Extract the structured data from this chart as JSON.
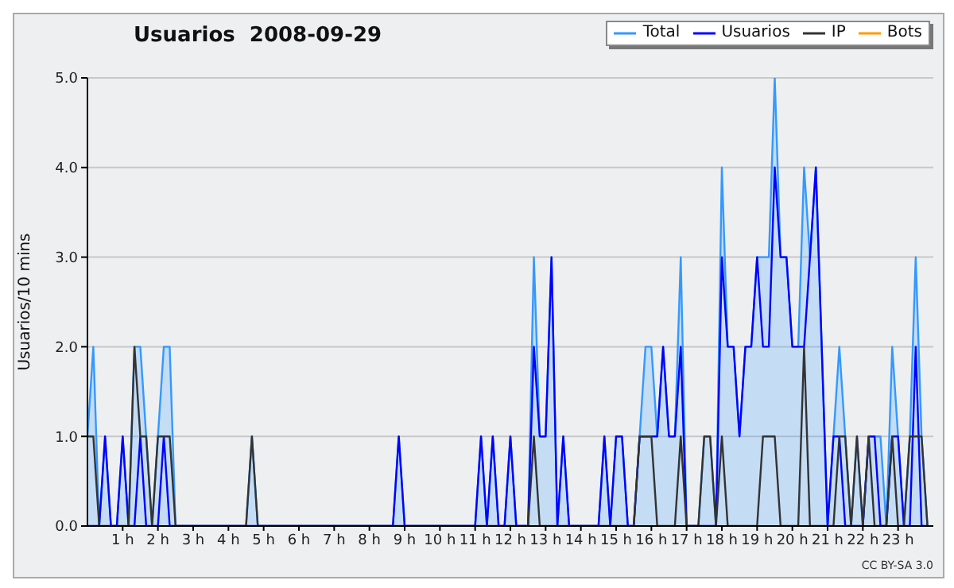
{
  "chart_data": {
    "type": "line",
    "title": "Usuarios  2008-09-29",
    "ylabel": "Usuarios/10 mins",
    "annotations": [
      "CC BY-SA 3.0"
    ],
    "x": [
      0,
      0.1667,
      0.3333,
      0.5,
      0.6667,
      0.8333,
      1,
      1.1667,
      1.3333,
      1.5,
      1.6667,
      1.8333,
      2,
      2.1667,
      2.3333,
      2.5,
      2.6667,
      2.8333,
      3,
      3.1667,
      3.3333,
      3.5,
      3.6667,
      3.8333,
      4,
      4.1667,
      4.3333,
      4.5,
      4.6667,
      4.8333,
      5,
      5.1667,
      5.3333,
      5.5,
      5.6667,
      5.8333,
      6,
      6.1667,
      6.3333,
      6.5,
      6.6667,
      6.8333,
      7,
      7.1667,
      7.3333,
      7.5,
      7.6667,
      7.8333,
      8,
      8.1667,
      8.3333,
      8.5,
      8.6667,
      8.8333,
      9,
      9.1667,
      9.3333,
      9.5,
      9.6667,
      9.8333,
      10,
      10.1667,
      10.3333,
      10.5,
      10.6667,
      10.8333,
      11,
      11.1667,
      11.3333,
      11.5,
      11.6667,
      11.8333,
      12,
      12.1667,
      12.3333,
      12.5,
      12.6667,
      12.8333,
      13,
      13.1667,
      13.3333,
      13.5,
      13.6667,
      13.8333,
      14,
      14.1667,
      14.3333,
      14.5,
      14.6667,
      14.8333,
      15,
      15.1667,
      15.3333,
      15.5,
      15.6667,
      15.8333,
      16,
      16.1667,
      16.3333,
      16.5,
      16.6667,
      16.8333,
      17,
      17.1667,
      17.3333,
      17.5,
      17.6667,
      17.8333,
      18,
      18.1667,
      18.3333,
      18.5,
      18.6667,
      18.8333,
      19,
      19.1667,
      19.3333,
      19.5,
      19.6667,
      19.8333,
      20,
      20.1667,
      20.3333,
      20.5,
      20.6667,
      20.8333,
      21,
      21.1667,
      21.3333,
      21.5,
      21.6667,
      21.8333,
      22,
      22.1667,
      22.3333,
      22.5,
      22.6667,
      22.8333,
      23,
      23.1667,
      23.3333,
      23.5,
      23.6667,
      23.8333
    ],
    "series": [
      {
        "name": "Total",
        "type": "area",
        "color": "#3399ff",
        "values": [
          1,
          2,
          0,
          1,
          0,
          0,
          1,
          0,
          2,
          2,
          1,
          0,
          1,
          2,
          2,
          0,
          0,
          0,
          0,
          0,
          0,
          0,
          0,
          0,
          0,
          0,
          0,
          0,
          1,
          0,
          0,
          0,
          0,
          0,
          0,
          0,
          0,
          0,
          0,
          0,
          0,
          0,
          0,
          0,
          0,
          0,
          0,
          0,
          0,
          0,
          0,
          0,
          0,
          1,
          0,
          0,
          0,
          0,
          0,
          0,
          0,
          0,
          0,
          0,
          0,
          0,
          0,
          1,
          0,
          1,
          0,
          0,
          1,
          0,
          0,
          0,
          3,
          1,
          1,
          3,
          0,
          1,
          0,
          0,
          0,
          0,
          0,
          0,
          1,
          0,
          1,
          1,
          0,
          0,
          1,
          2,
          2,
          1,
          2,
          1,
          1,
          3,
          0,
          0,
          0,
          1,
          1,
          0,
          4,
          2,
          2,
          1,
          2,
          2,
          3,
          3,
          3,
          5,
          3,
          3,
          2,
          2,
          4,
          3,
          4,
          2,
          0,
          1,
          2,
          1,
          0,
          1,
          0,
          1,
          1,
          1,
          0,
          2,
          1,
          0,
          1,
          3,
          1,
          0
        ]
      },
      {
        "name": "Usuarios",
        "color": "#0000ff",
        "values": [
          0,
          0,
          0,
          1,
          0,
          0,
          1,
          0,
          0,
          1,
          0,
          0,
          0,
          1,
          0,
          0,
          0,
          0,
          0,
          0,
          0,
          0,
          0,
          0,
          0,
          0,
          0,
          0,
          0,
          0,
          0,
          0,
          0,
          0,
          0,
          0,
          0,
          0,
          0,
          0,
          0,
          0,
          0,
          0,
          0,
          0,
          0,
          0,
          0,
          0,
          0,
          0,
          0,
          1,
          0,
          0,
          0,
          0,
          0,
          0,
          0,
          0,
          0,
          0,
          0,
          0,
          0,
          1,
          0,
          1,
          0,
          0,
          1,
          0,
          0,
          0,
          2,
          1,
          1,
          3,
          0,
          1,
          0,
          0,
          0,
          0,
          0,
          0,
          1,
          0,
          1,
          1,
          0,
          0,
          1,
          1,
          1,
          1,
          2,
          1,
          1,
          2,
          0,
          0,
          0,
          0,
          0,
          0,
          3,
          2,
          2,
          1,
          2,
          2,
          3,
          2,
          2,
          4,
          3,
          3,
          2,
          2,
          2,
          3,
          4,
          2,
          0,
          1,
          1,
          0,
          0,
          0,
          0,
          1,
          1,
          0,
          0,
          1,
          1,
          0,
          0,
          2,
          0,
          0
        ]
      },
      {
        "name": "IP",
        "color": "#333333",
        "values": [
          1,
          1,
          0,
          0,
          0,
          0,
          0,
          0,
          2,
          1,
          1,
          0,
          1,
          1,
          1,
          0,
          0,
          0,
          0,
          0,
          0,
          0,
          0,
          0,
          0,
          0,
          0,
          0,
          1,
          0,
          0,
          0,
          0,
          0,
          0,
          0,
          0,
          0,
          0,
          0,
          0,
          0,
          0,
          0,
          0,
          0,
          0,
          0,
          0,
          0,
          0,
          0,
          0,
          0,
          0,
          0,
          0,
          0,
          0,
          0,
          0,
          0,
          0,
          0,
          0,
          0,
          0,
          0,
          0,
          0,
          0,
          0,
          0,
          0,
          0,
          0,
          1,
          0,
          0,
          0,
          0,
          0,
          0,
          0,
          0,
          0,
          0,
          0,
          0,
          0,
          0,
          0,
          0,
          0,
          1,
          1,
          1,
          0,
          0,
          0,
          0,
          1,
          0,
          0,
          0,
          1,
          1,
          0,
          1,
          0,
          0,
          0,
          0,
          0,
          0,
          1,
          1,
          1,
          0,
          0,
          0,
          0,
          2,
          0,
          0,
          0,
          0,
          0,
          1,
          1,
          0,
          1,
          0,
          1,
          0,
          0,
          0,
          1,
          0,
          0,
          1,
          1,
          1,
          0
        ]
      },
      {
        "name": "Bots",
        "color": "#ff9900",
        "values": [
          null,
          null,
          null,
          null,
          null,
          null,
          null,
          null,
          null,
          null,
          null,
          null,
          null,
          null,
          null,
          null,
          null,
          null,
          null,
          null,
          null,
          null,
          null,
          null,
          null,
          null,
          null,
          null,
          null,
          null,
          null,
          null,
          null,
          null,
          null,
          null,
          null,
          null,
          null,
          null,
          null,
          null,
          null,
          null,
          null,
          null,
          null,
          null,
          null,
          null,
          null,
          null,
          null,
          null,
          null,
          null,
          null,
          null,
          null,
          null,
          null,
          null,
          null,
          null,
          null,
          null,
          null,
          null,
          null,
          null,
          null,
          null,
          null,
          null,
          null,
          null,
          null,
          null,
          null,
          null,
          null,
          null,
          null,
          null,
          null,
          null,
          null,
          null,
          null,
          null,
          null,
          null,
          null,
          null,
          null,
          null,
          null,
          null,
          null,
          null,
          null,
          null,
          null,
          null,
          null,
          null,
          null,
          null,
          null,
          null,
          null,
          null,
          null,
          null,
          null,
          null,
          null,
          null,
          null,
          null,
          null,
          null,
          null,
          null,
          null,
          null,
          null,
          null,
          null,
          null,
          null,
          null,
          null,
          null,
          null,
          null,
          null,
          null,
          null,
          null,
          null,
          null,
          null,
          null
        ]
      }
    ],
    "xlim": [
      0,
      24
    ],
    "xticks": [
      {
        "value": 1,
        "label": "1 h"
      },
      {
        "value": 2,
        "label": "2 h"
      },
      {
        "value": 3,
        "label": "3 h"
      },
      {
        "value": 4,
        "label": "4 h"
      },
      {
        "value": 5,
        "label": "5 h"
      },
      {
        "value": 6,
        "label": "6 h"
      },
      {
        "value": 7,
        "label": "7 h"
      },
      {
        "value": 8,
        "label": "8 h"
      },
      {
        "value": 9,
        "label": "9 h"
      },
      {
        "value": 10,
        "label": "10 h"
      },
      {
        "value": 11,
        "label": "11 h"
      },
      {
        "value": 12,
        "label": "12 h"
      },
      {
        "value": 13,
        "label": "13 h"
      },
      {
        "value": 14,
        "label": "14 h"
      },
      {
        "value": 15,
        "label": "15 h"
      },
      {
        "value": 16,
        "label": "16 h"
      },
      {
        "value": 17,
        "label": "17 h"
      },
      {
        "value": 18,
        "label": "18 h"
      },
      {
        "value": 19,
        "label": "19 h"
      },
      {
        "value": 20,
        "label": "20 h"
      },
      {
        "value": 21,
        "label": "21 h"
      },
      {
        "value": 22,
        "label": "22 h"
      },
      {
        "value": 23,
        "label": "23 h"
      }
    ],
    "ylim": [
      0,
      5
    ],
    "yticks": [
      {
        "value": 0,
        "label": "0.0"
      },
      {
        "value": 1,
        "label": "1.0"
      },
      {
        "value": 2,
        "label": "2.0"
      },
      {
        "value": 3,
        "label": "3.0"
      },
      {
        "value": 4,
        "label": "4.0"
      },
      {
        "value": 5,
        "label": "5.0"
      }
    ],
    "grid": "y",
    "legend": "top right"
  }
}
